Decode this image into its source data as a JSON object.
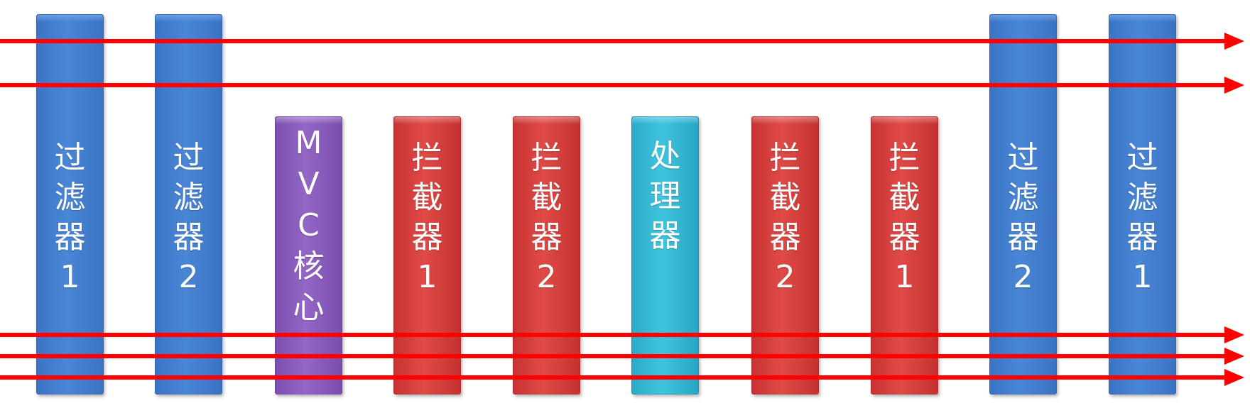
{
  "colors": {
    "filter": "#4a86d6",
    "mvc": "#9466c6",
    "interceptor": "#e04a46",
    "handler": "#3fc4df",
    "arrow": "#ff0000"
  },
  "bars": [
    {
      "id": "filter-1-in",
      "kind": "filter",
      "label": "过\n滤\n器\n1"
    },
    {
      "id": "filter-2-in",
      "kind": "filter",
      "label": "过\n滤\n器\n2"
    },
    {
      "id": "mvc-core",
      "kind": "mvc",
      "label": "M\nV\nC\n核\n心"
    },
    {
      "id": "interceptor-1-in",
      "kind": "interceptor",
      "label": "拦\n截\n器\n1"
    },
    {
      "id": "interceptor-2-in",
      "kind": "interceptor",
      "label": "拦\n截\n器\n2"
    },
    {
      "id": "handler",
      "kind": "handler",
      "label": "处\n理\n器"
    },
    {
      "id": "interceptor-2-out",
      "kind": "interceptor",
      "label": "拦\n截\n器\n2"
    },
    {
      "id": "interceptor-1-out",
      "kind": "interceptor",
      "label": "拦\n截\n器\n1"
    },
    {
      "id": "filter-2-out",
      "kind": "filter",
      "label": "过\n滤\n器\n2"
    },
    {
      "id": "filter-1-out",
      "kind": "filter",
      "label": "过\n滤\n器\n1"
    }
  ],
  "arrow_count": 5
}
